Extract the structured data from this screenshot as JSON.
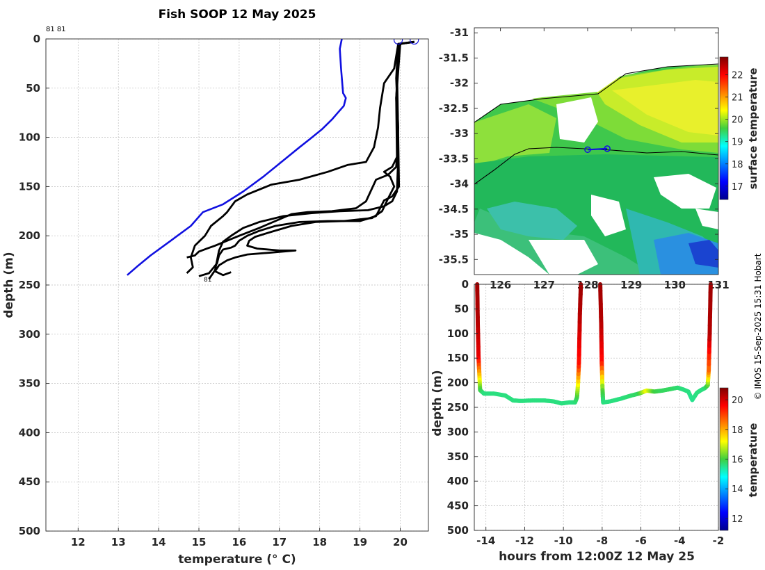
{
  "chart_data": [
    {
      "id": "profiles",
      "type": "line",
      "title": "Fish SOOP 12 May 2025",
      "xlabel": "temperature (° C)",
      "ylabel": "depth (m)",
      "xlim": [
        11.2,
        20.7
      ],
      "ylim": [
        0,
        500
      ],
      "xticks": [
        "12",
        "13",
        "14",
        "15",
        "16",
        "17",
        "18",
        "19",
        "20"
      ],
      "yticks": [
        "0",
        "50",
        "100",
        "150",
        "200",
        "250",
        "300",
        "350",
        "400",
        "450",
        "500"
      ],
      "annotations": {
        "top_left": "81 81",
        "bottom_label": "81"
      },
      "colors": {
        "climatology": "#1010e0",
        "profiles": "#000000"
      },
      "series": [
        {
          "name": "climatology",
          "color": "#1010e0",
          "points": [
            [
              18.55,
              0
            ],
            [
              18.5,
              10
            ],
            [
              18.53,
              30
            ],
            [
              18.58,
              55
            ],
            [
              18.65,
              60
            ],
            [
              18.6,
              68
            ],
            [
              18.45,
              75
            ],
            [
              18.3,
              82
            ],
            [
              18.05,
              92
            ],
            [
              17.75,
              102
            ],
            [
              17.5,
              110
            ],
            [
              17.05,
              125
            ],
            [
              16.6,
              140
            ],
            [
              16.1,
              155
            ],
            [
              15.6,
              168
            ],
            [
              15.1,
              176
            ],
            [
              14.8,
              190
            ],
            [
              14.3,
              205
            ],
            [
              13.8,
              220
            ],
            [
              13.5,
              230
            ],
            [
              13.22,
              240
            ]
          ]
        },
        {
          "name": "profile-1",
          "color": "#000000",
          "points": [
            [
              20.35,
              3
            ],
            [
              19.95,
              5
            ],
            [
              19.85,
              30
            ],
            [
              19.6,
              45
            ],
            [
              19.5,
              70
            ],
            [
              19.45,
              90
            ],
            [
              19.35,
              110
            ],
            [
              19.15,
              125
            ],
            [
              18.7,
              128
            ],
            [
              18.2,
              135
            ],
            [
              17.5,
              143
            ],
            [
              16.8,
              148
            ],
            [
              16.2,
              158
            ],
            [
              15.9,
              165
            ],
            [
              15.7,
              176
            ],
            [
              15.6,
              180
            ],
            [
              15.3,
              190
            ],
            [
              15.15,
              200
            ],
            [
              14.9,
              210
            ],
            [
              14.8,
              222
            ],
            [
              14.85,
              232
            ],
            [
              14.7,
              238
            ]
          ]
        },
        {
          "name": "profile-2",
          "color": "#000000",
          "points": [
            [
              20.35,
              3
            ],
            [
              20.0,
              5
            ],
            [
              19.95,
              20
            ],
            [
              19.9,
              60
            ],
            [
              19.95,
              120
            ],
            [
              19.92,
              155
            ],
            [
              19.8,
              165
            ],
            [
              19.6,
              170
            ],
            [
              19.2,
              174
            ],
            [
              18.5,
              175
            ],
            [
              17.8,
              177
            ],
            [
              17.1,
              180
            ],
            [
              16.5,
              186
            ],
            [
              16.1,
              192
            ],
            [
              15.8,
              200
            ],
            [
              15.6,
              206
            ],
            [
              15.5,
              215
            ],
            [
              15.45,
              225
            ],
            [
              15.4,
              235
            ],
            [
              15.25,
              244
            ]
          ]
        },
        {
          "name": "profile-3",
          "color": "#000000",
          "points": [
            [
              20.35,
              3
            ],
            [
              20.0,
              5
            ],
            [
              19.92,
              30
            ],
            [
              19.95,
              100
            ],
            [
              19.97,
              150
            ],
            [
              19.8,
              160
            ],
            [
              19.6,
              164
            ],
            [
              19.5,
              172
            ],
            [
              19.4,
              180
            ],
            [
              19.0,
              185
            ],
            [
              18.2,
              185
            ],
            [
              17.5,
              186
            ],
            [
              16.9,
              190
            ],
            [
              16.5,
              195
            ],
            [
              16.2,
              200
            ],
            [
              16.0,
              205
            ],
            [
              15.9,
              210
            ],
            [
              15.8,
              212
            ],
            [
              15.6,
              214
            ],
            [
              15.5,
              220
            ],
            [
              15.45,
              228
            ],
            [
              15.25,
              238
            ],
            [
              15.0,
              241
            ]
          ]
        },
        {
          "name": "profile-4",
          "color": "#000000",
          "points": [
            [
              20.35,
              3
            ],
            [
              20.0,
              5
            ],
            [
              19.9,
              60
            ],
            [
              19.92,
              120
            ],
            [
              19.9,
              130
            ],
            [
              19.7,
              138
            ],
            [
              19.4,
              143
            ],
            [
              19.15,
              165
            ],
            [
              18.9,
              172
            ],
            [
              18.3,
              175
            ],
            [
              17.7,
              176
            ],
            [
              17.3,
              178
            ],
            [
              16.9,
              185
            ],
            [
              16.5,
              192
            ],
            [
              16.0,
              200
            ],
            [
              15.7,
              205
            ],
            [
              15.4,
              210
            ],
            [
              15.2,
              213
            ],
            [
              15.0,
              216
            ],
            [
              14.9,
              220
            ],
            [
              14.7,
              222
            ]
          ]
        },
        {
          "name": "profile-5",
          "color": "#000000",
          "points": [
            [
              20.35,
              3
            ],
            [
              19.95,
              5
            ],
            [
              19.9,
              40
            ],
            [
              19.95,
              90
            ],
            [
              19.92,
              120
            ],
            [
              19.8,
              130
            ],
            [
              19.6,
              135
            ],
            [
              19.75,
              140
            ],
            [
              19.85,
              150
            ],
            [
              19.7,
              162
            ],
            [
              19.55,
              175
            ],
            [
              19.3,
              182
            ],
            [
              18.6,
              185
            ],
            [
              17.9,
              186
            ],
            [
              17.3,
              190
            ],
            [
              16.8,
              196
            ],
            [
              16.4,
              201
            ],
            [
              16.25,
              205
            ],
            [
              16.2,
              210
            ],
            [
              16.45,
              213
            ],
            [
              17.0,
              215
            ],
            [
              17.4,
              215
            ],
            [
              16.8,
              217
            ],
            [
              16.2,
              219
            ],
            [
              15.9,
              222
            ],
            [
              15.7,
              225
            ],
            [
              15.5,
              230
            ],
            [
              15.4,
              236
            ],
            [
              15.6,
              240
            ],
            [
              15.8,
              237
            ]
          ]
        }
      ],
      "markers": [
        [
          19.95,
          1
        ],
        [
          20.35,
          1
        ]
      ]
    },
    {
      "id": "sst-map",
      "type": "heatmap",
      "ylim": [
        -35.8,
        -30.9
      ],
      "xlim": [
        125.4,
        131.0
      ],
      "yticks": [
        "-31",
        "-31.5",
        "-32",
        "-32.5",
        "-33",
        "-33.5",
        "-34",
        "-34.5",
        "-35",
        "-35.5"
      ],
      "xticks": [
        "126",
        "127",
        "128",
        "129",
        "130",
        "131"
      ],
      "colorbar": {
        "label": "surface temperature",
        "min": 16.4,
        "max": 22.8,
        "ticks": [
          "17",
          "18",
          "19",
          "20",
          "21",
          "22"
        ]
      },
      "track": [
        [
          128.0,
          -33.32
        ],
        [
          128.45,
          -33.3
        ]
      ]
    },
    {
      "id": "depth-time",
      "type": "scatter",
      "xlabel": "hours from 12:00Z 12 May 25",
      "ylabel": "depth (m)",
      "xlim": [
        -14.6,
        -2
      ],
      "ylim": [
        0,
        500
      ],
      "xticks": [
        "-14",
        "-12",
        "-10",
        "-8",
        "-6",
        "-4",
        "-2"
      ],
      "yticks": [
        "0",
        "50",
        "100",
        "150",
        "200",
        "250",
        "300",
        "350",
        "400",
        "450",
        "500"
      ],
      "colorbar": {
        "label": "temperature",
        "min": 11.2,
        "max": 20.8,
        "ticks": [
          "12",
          "14",
          "16",
          "18",
          "20"
        ]
      },
      "series": [
        {
          "name": "tow-1",
          "points": [
            [
              -14.45,
              0,
              20.5
            ],
            [
              -14.42,
              80,
              20.3
            ],
            [
              -14.38,
              150,
              19.8
            ],
            [
              -14.33,
              190,
              17.6
            ],
            [
              -14.3,
              215,
              16.0
            ],
            [
              -14.1,
              222,
              15.6
            ],
            [
              -13.6,
              222,
              15.6
            ],
            [
              -13.0,
              226,
              15.6
            ],
            [
              -12.6,
              236,
              15.6
            ],
            [
              -12.2,
              237,
              15.6
            ],
            [
              -11.6,
              236,
              15.6
            ],
            [
              -11.0,
              236,
              15.6
            ],
            [
              -10.5,
              238,
              15.6
            ],
            [
              -10.1,
              242,
              15.6
            ],
            [
              -9.7,
              240,
              15.6
            ],
            [
              -9.4,
              240,
              15.6
            ],
            [
              -9.3,
              230,
              15.8
            ],
            [
              -9.25,
              205,
              17.0
            ],
            [
              -9.2,
              160,
              19.4
            ],
            [
              -9.15,
              60,
              20.3
            ],
            [
              -9.1,
              0,
              20.5
            ]
          ]
        },
        {
          "name": "tow-2",
          "points": [
            [
              -8.1,
              0,
              20.5
            ],
            [
              -8.05,
              80,
              20.3
            ],
            [
              -8.02,
              160,
              19.5
            ],
            [
              -7.98,
              215,
              16.2
            ],
            [
              -7.95,
              240,
              15.6
            ],
            [
              -7.6,
              238,
              15.6
            ],
            [
              -7.0,
              232,
              15.6
            ],
            [
              -6.5,
              226,
              15.7
            ],
            [
              -6.1,
              222,
              15.8
            ],
            [
              -5.7,
              216,
              17.2
            ],
            [
              -5.3,
              218,
              16.0
            ],
            [
              -4.9,
              216,
              15.8
            ],
            [
              -4.5,
              213,
              15.8
            ],
            [
              -4.1,
              210,
              15.7
            ],
            [
              -3.8,
              214,
              15.6
            ],
            [
              -3.55,
              218,
              15.6
            ],
            [
              -3.35,
              235,
              15.5
            ],
            [
              -3.1,
              220,
              15.6
            ],
            [
              -2.9,
              215,
              15.6
            ],
            [
              -2.7,
              211,
              15.6
            ],
            [
              -2.55,
              205,
              16.0
            ],
            [
              -2.5,
              175,
              18.5
            ],
            [
              -2.45,
              100,
              20.3
            ],
            [
              -2.4,
              0,
              20.5
            ]
          ]
        }
      ]
    }
  ],
  "footer": {
    "credit": "© IMOS 15-Sep-2025 15:31 Hobart"
  }
}
